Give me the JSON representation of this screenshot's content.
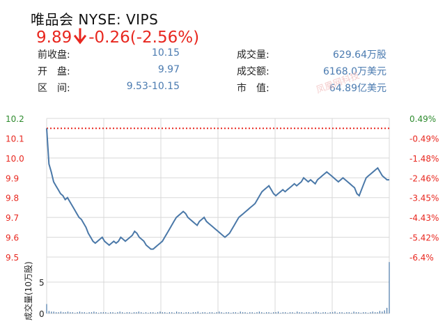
{
  "header": {
    "title": "唯品会 NYSE: VIPS",
    "price": "9.89",
    "change": "-0.26",
    "change_pct": "(-2.56%)",
    "stats": [
      {
        "label": "前收盘:",
        "value": "10.15"
      },
      {
        "label": "开　盘:",
        "value": "9.97"
      },
      {
        "label": "区　间:",
        "value": "9.53-10.15"
      },
      {
        "label": "成交量:",
        "value": "629.64万股"
      },
      {
        "label": "成交额:",
        "value": "6168.0万美元"
      },
      {
        "label": "市　值:",
        "value": "64.89亿美元"
      }
    ],
    "watermark": "凤凰网科技"
  },
  "colors": {
    "up": "#2e8b2e",
    "down": "#e8271f",
    "line": "#4a78a8",
    "ref": "#e8271f",
    "grid": "#d8d8d8"
  },
  "chart_data": [
    {
      "type": "line",
      "title": "",
      "y_ticks": [
        "10.2",
        "10.1",
        "10.0",
        "9.9",
        "9.8",
        "9.7",
        "9.6",
        "9.5"
      ],
      "y_tick_values": [
        10.2,
        10.1,
        10.0,
        9.9,
        9.8,
        9.7,
        9.6,
        9.5
      ],
      "y_right_ticks": [
        "0.49%",
        "-0.49%",
        "-1.48%",
        "-2.46%",
        "-3.45%",
        "-4.43%",
        "-5.42%",
        "-6.4%"
      ],
      "ylim": [
        9.5,
        10.2
      ],
      "reference_price": 10.15,
      "grid": true,
      "series": [
        {
          "values": [
            10.15,
            9.97,
            9.93,
            9.88,
            9.86,
            9.84,
            9.82,
            9.81,
            9.79,
            9.8,
            9.78,
            9.76,
            9.74,
            9.72,
            9.7,
            9.69,
            9.67,
            9.65,
            9.62,
            9.6,
            9.58,
            9.57,
            9.58,
            9.59,
            9.6,
            9.58,
            9.57,
            9.56,
            9.57,
            9.58,
            9.57,
            9.58,
            9.6,
            9.59,
            9.58,
            9.59,
            9.6,
            9.61,
            9.63,
            9.62,
            9.6,
            9.59,
            9.58,
            9.56,
            9.55,
            9.54,
            9.54,
            9.55,
            9.56,
            9.57,
            9.58,
            9.6,
            9.62,
            9.64,
            9.66,
            9.68,
            9.7,
            9.71,
            9.72,
            9.73,
            9.72,
            9.7,
            9.69,
            9.68,
            9.67,
            9.66,
            9.68,
            9.69,
            9.7,
            9.68,
            9.67,
            9.66,
            9.65,
            9.64,
            9.63,
            9.62,
            9.61,
            9.6,
            9.61,
            9.62,
            9.64,
            9.66,
            9.68,
            9.7,
            9.71,
            9.72,
            9.73,
            9.74,
            9.75,
            9.76,
            9.77,
            9.79,
            9.81,
            9.83,
            9.84,
            9.85,
            9.86,
            9.84,
            9.82,
            9.81,
            9.82,
            9.83,
            9.84,
            9.83,
            9.84,
            9.85,
            9.86,
            9.87,
            9.86,
            9.87,
            9.88,
            9.9,
            9.89,
            9.88,
            9.89,
            9.88,
            9.87,
            9.89,
            9.9,
            9.91,
            9.92,
            9.93,
            9.92,
            9.91,
            9.9,
            9.89,
            9.88,
            9.89,
            9.9,
            9.89,
            9.88,
            9.87,
            9.86,
            9.85,
            9.82,
            9.81,
            9.84,
            9.87,
            9.9,
            9.91,
            9.92,
            9.93,
            9.94,
            9.95,
            9.93,
            9.91,
            9.9,
            9.89,
            9.89
          ]
        }
      ]
    },
    {
      "type": "bar",
      "ylabel": "成交量(10万股)",
      "y_ticks": [
        "5",
        "0"
      ],
      "y_tick_values": [
        5,
        0
      ],
      "ylim": [
        0,
        9
      ],
      "values": [
        1.5,
        0.4,
        0.3,
        0.3,
        0.2,
        0.2,
        0.3,
        0.2,
        0.2,
        0.3,
        0.2,
        0.2,
        0.1,
        0.2,
        0.3,
        0.2,
        0.2,
        0.1,
        0.2,
        0.2,
        0.3,
        0.2,
        0.1,
        0.2,
        0.2,
        0.2,
        0.1,
        0.2,
        0.2,
        0.1,
        0.2,
        0.3,
        0.2,
        0.1,
        0.2,
        0.2,
        0.1,
        0.2,
        0.2,
        0.3,
        0.2,
        0.1,
        0.2,
        0.1,
        0.2,
        0.2,
        0.1,
        0.2,
        0.3,
        0.2,
        0.2,
        0.1,
        0.2,
        0.2,
        0.1,
        0.3,
        0.2,
        0.2,
        0.1,
        0.2,
        0.2,
        0.1,
        0.2,
        0.2,
        0.3,
        0.1,
        0.2,
        0.2,
        0.1,
        0.2,
        0.2,
        0.1,
        0.2,
        0.3,
        0.2,
        0.1,
        0.2,
        0.2,
        0.1,
        0.2,
        0.2,
        0.1,
        0.3,
        0.2,
        0.2,
        0.1,
        0.2,
        0.2,
        0.1,
        0.2,
        0.3,
        0.2,
        0.1,
        0.2,
        0.2,
        0.1,
        0.2,
        0.2,
        0.3,
        0.1,
        0.2,
        0.2,
        0.1,
        0.2,
        0.2,
        0.1,
        0.3,
        0.2,
        0.2,
        0.1,
        0.2,
        0.2,
        0.1,
        0.2,
        0.3,
        0.2,
        0.1,
        0.2,
        0.2,
        0.1,
        0.2,
        0.2,
        0.3,
        0.1,
        0.2,
        0.2,
        0.1,
        0.2,
        0.2,
        0.1,
        0.3,
        0.2,
        0.2,
        0.1,
        0.2,
        0.2,
        0.1,
        0.2,
        0.3,
        0.2,
        0.2,
        0.4,
        0.3,
        0.5,
        0.9,
        8.2
      ]
    }
  ]
}
